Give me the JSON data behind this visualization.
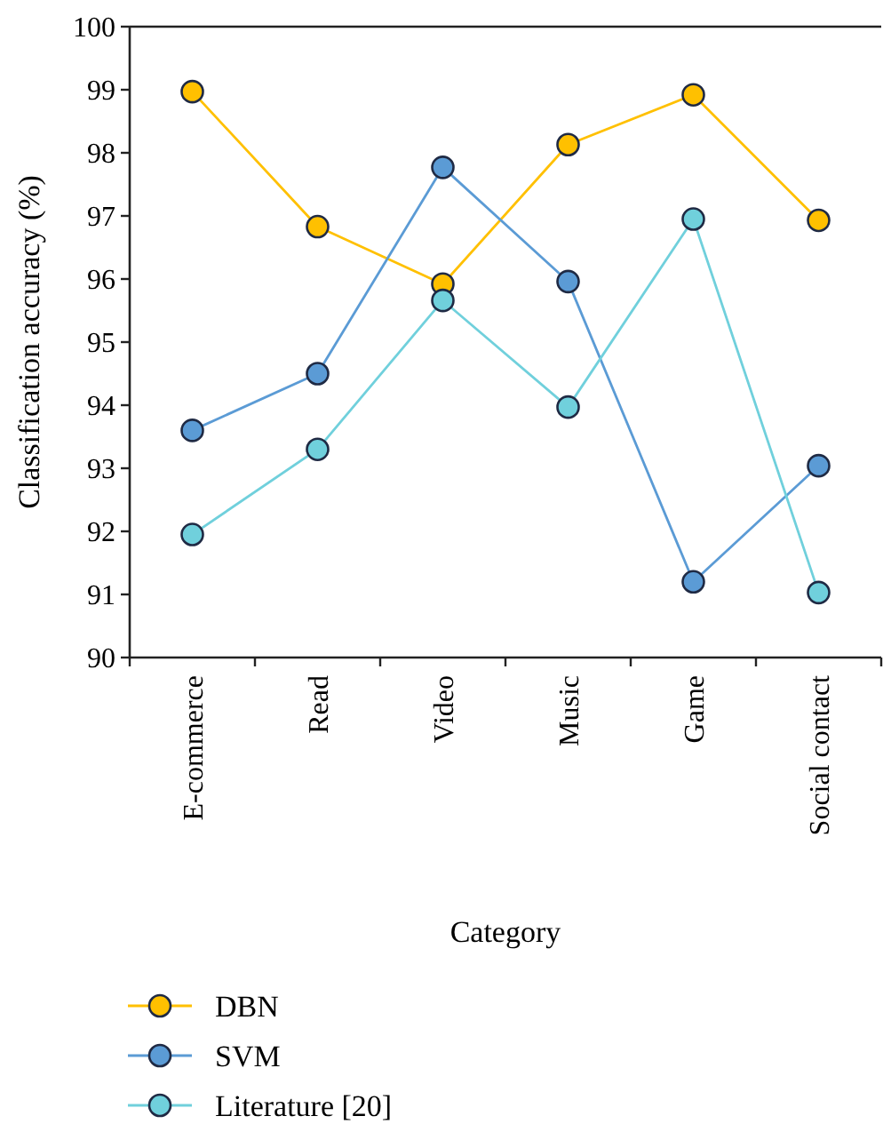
{
  "chart_data": {
    "type": "line",
    "xlabel": "Category",
    "ylabel": "Classification accuracy (%)",
    "categories": [
      "E-commerce",
      "Read",
      "Video",
      "Music",
      "Game",
      "Social contact"
    ],
    "series": [
      {
        "name": "DBN",
        "color": "#ffc000",
        "values": [
          98.97,
          96.83,
          95.92,
          98.13,
          98.92,
          96.93
        ]
      },
      {
        "name": "SVM",
        "color": "#5b9bd5",
        "values": [
          93.6,
          94.5,
          97.77,
          95.96,
          91.2,
          93.04
        ]
      },
      {
        "name": "Literature [20]",
        "color": "#70d0dc",
        "values": [
          91.95,
          93.3,
          95.66,
          93.97,
          96.95,
          91.03
        ]
      }
    ],
    "ylim": [
      90,
      100
    ],
    "yticks": [
      90,
      91,
      92,
      93,
      94,
      95,
      96,
      97,
      98,
      99,
      100
    ],
    "grid": false,
    "legend": "bottom left",
    "marker": "circle",
    "line_style": "solid"
  }
}
